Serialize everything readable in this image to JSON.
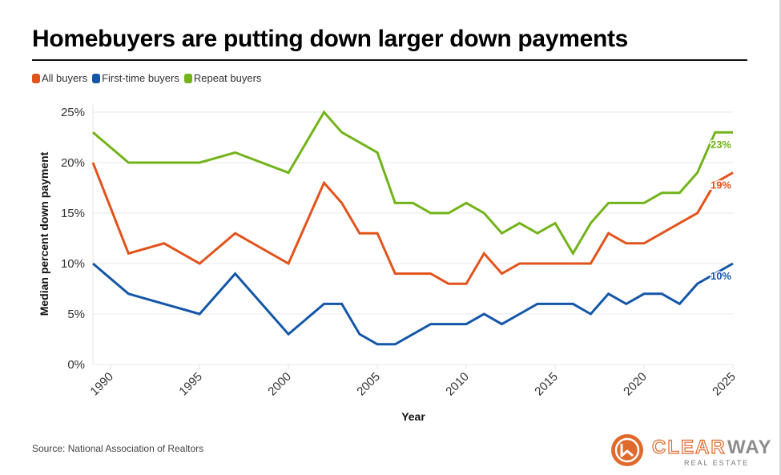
{
  "title": "Homebuyers are putting down larger down payments",
  "source": "Source: National Association of Realtors",
  "logo": {
    "name_part1": "CLEAR",
    "name_part2": "WAY",
    "tagline": "REAL ESTATE",
    "colors": {
      "orange": "#E06A2B",
      "gray": "#8C8C8C"
    }
  },
  "chart_data": {
    "type": "line",
    "title": "Homebuyers are putting down larger down payments",
    "xlabel": "Year",
    "ylabel": "Median percent down payment",
    "xlim": [
      1989,
      2025
    ],
    "ylim": [
      0,
      25
    ],
    "x_ticks": [
      1990,
      1995,
      2000,
      2005,
      2010,
      2015,
      2020,
      2025
    ],
    "y_ticks": [
      0,
      5,
      10,
      15,
      20,
      25
    ],
    "y_tick_labels": [
      "0%",
      "5%",
      "10%",
      "15%",
      "20%",
      "25%"
    ],
    "grid": "horizontal",
    "legend_position": "top-left",
    "x": [
      1989,
      1991,
      1993,
      1995,
      1997,
      2000,
      2002,
      2003,
      2004,
      2005,
      2006,
      2007,
      2008,
      2009,
      2010,
      2011,
      2012,
      2013,
      2014,
      2015,
      2016,
      2017,
      2018,
      2019,
      2020,
      2021,
      2022,
      2023,
      2024,
      2025
    ],
    "series": [
      {
        "name": "All buyers",
        "color": "#E2531B",
        "end_label": "19%",
        "values": [
          20,
          11,
          12,
          10,
          13,
          10,
          18,
          16,
          13,
          13,
          9,
          9,
          9,
          8,
          8,
          11,
          9,
          10,
          10,
          10,
          10,
          10,
          13,
          12,
          12,
          13,
          14,
          15,
          18,
          19
        ]
      },
      {
        "name": "First-time buyers",
        "color": "#1456A8",
        "end_label": "10%",
        "values": [
          10,
          7,
          6,
          5,
          9,
          3,
          6,
          6,
          3,
          2,
          2,
          3,
          4,
          4,
          4,
          5,
          4,
          5,
          6,
          6,
          6,
          5,
          7,
          6,
          7,
          7,
          6,
          8,
          9,
          10
        ]
      },
      {
        "name": "Repeat buyers",
        "color": "#72B31A",
        "end_label": "23%",
        "values": [
          23,
          20,
          20,
          20,
          21,
          19,
          25,
          23,
          22,
          21,
          16,
          16,
          15,
          15,
          16,
          15,
          13,
          14,
          13,
          14,
          11,
          14,
          16,
          16,
          16,
          17,
          17,
          19,
          23,
          23
        ]
      }
    ]
  }
}
